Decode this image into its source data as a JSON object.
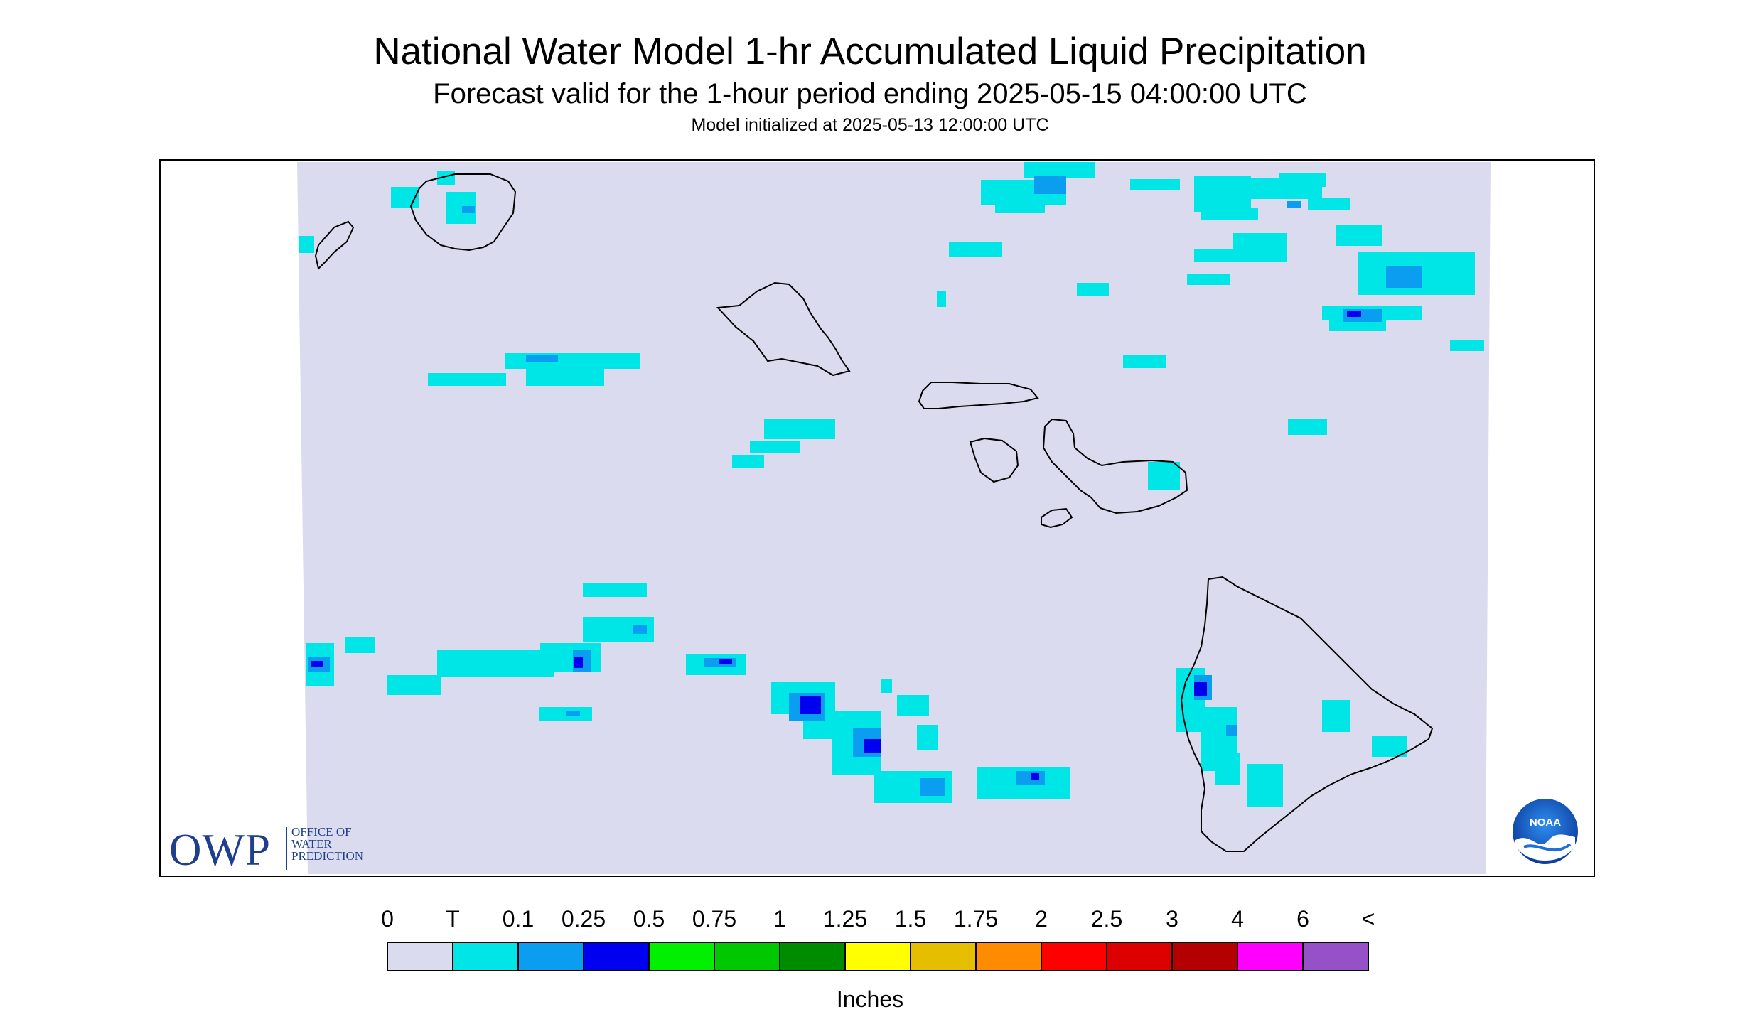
{
  "title": "National Water Model 1-hr Accumulated Liquid Precipitation",
  "subtitle": "Forecast valid for the 1-hour period ending 2025-05-15 04:00:00 UTC",
  "init_text": "Model initialized at 2025-05-13 12:00:00 UTC",
  "logo_owp": {
    "acronym": "OWP",
    "line1": "OFFICE OF",
    "line2": "WATER",
    "line3": "PREDICTION"
  },
  "logo_noaa": "NOAA",
  "colors": {
    "background_map": "#dadbee",
    "brand_owp": "#1f3e8c",
    "coastline": "#000000"
  },
  "legend": {
    "unit": "Inches",
    "labels": [
      "0",
      "T",
      "0.1",
      "0.25",
      "0.5",
      "0.75",
      "1",
      "1.25",
      "1.5",
      "1.75",
      "2",
      "2.5",
      "3",
      "4",
      "6",
      "<"
    ],
    "bins": [
      {
        "color": "#dadbee"
      },
      {
        "color": "#00e6e6"
      },
      {
        "color": "#0b9df0"
      },
      {
        "color": "#0000f0"
      },
      {
        "color": "#00f000"
      },
      {
        "color": "#00c800"
      },
      {
        "color": "#008c00"
      },
      {
        "color": "#ffff00"
      },
      {
        "color": "#e6be00"
      },
      {
        "color": "#ff8c00"
      },
      {
        "color": "#ff0000"
      },
      {
        "color": "#dc0000"
      },
      {
        "color": "#b40000"
      },
      {
        "color": "#ff00ff"
      },
      {
        "color": "#9650c8"
      }
    ]
  }
}
